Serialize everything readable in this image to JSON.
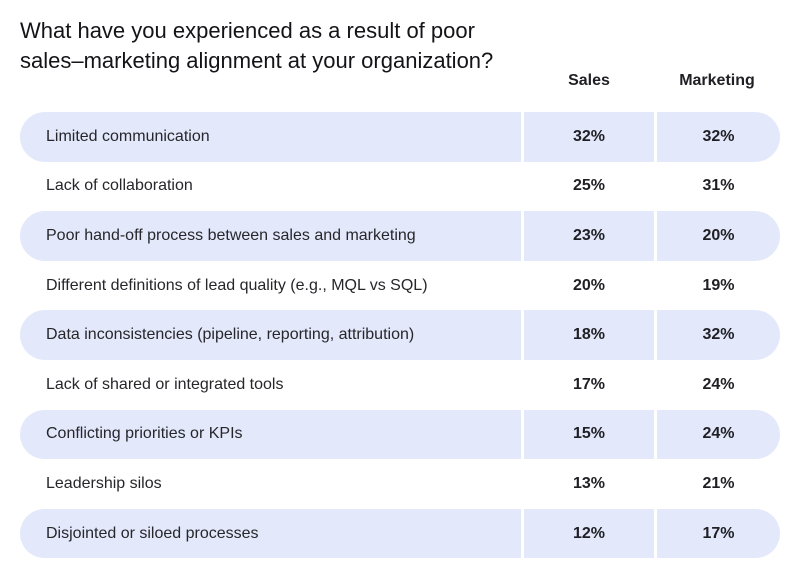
{
  "chart_data": {
    "type": "table",
    "title": "What have you experienced as a result of poor sales–marketing alignment at your organization?",
    "title_lines": [
      "What have you experienced as a result of poor",
      "sales–marketing alignment at your organization?"
    ],
    "series": [
      {
        "name": "Sales",
        "values": [
          "32%",
          "25%",
          "23%",
          "20%",
          "18%",
          "17%",
          "15%",
          "13%",
          "12%"
        ]
      },
      {
        "name": "Marketing",
        "values": [
          "32%",
          "31%",
          "20%",
          "19%",
          "32%",
          "24%",
          "24%",
          "21%",
          "17%"
        ]
      }
    ],
    "categories": [
      "Limited communication",
      "Lack of collaboration",
      "Poor hand-off process between sales and marketing",
      "Different definitions of lead quality (e.g., MQL vs  SQL)",
      "Data inconsistencies (pipeline, reporting, attribution)",
      "Lack of shared or integrated tools",
      "Conflicting priorities or KPIs",
      "Leadership silos",
      "Disjointed or siloed processes"
    ],
    "row_shading_color": "#e3e9fb"
  }
}
